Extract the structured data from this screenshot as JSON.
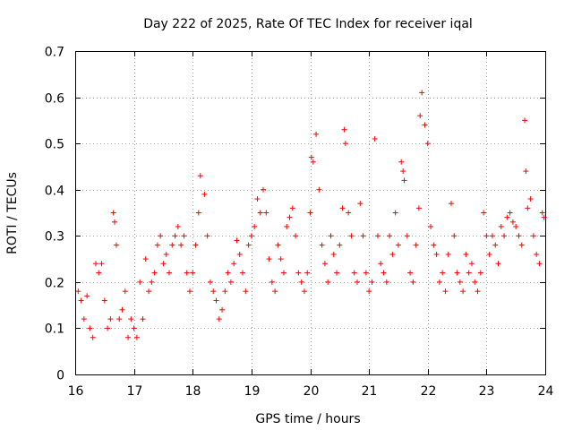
{
  "chart_data": {
    "type": "scatter",
    "title": "Day 222 of 2025, Rate Of TEC Index for receiver iqal",
    "xlabel": "GPS time / hours",
    "ylabel": "ROTI / TECUs",
    "xlim": [
      16,
      24
    ],
    "ylim": [
      0,
      0.7
    ],
    "xticks": [
      "16",
      "17",
      "18",
      "19",
      "20",
      "21",
      "22",
      "23",
      "24"
    ],
    "yticks": [
      "0",
      "0.1",
      "0.2",
      "0.3",
      "0.4",
      "0.5",
      "0.6",
      "0.7"
    ],
    "grid": true,
    "marker": "+",
    "color": "#ff0000",
    "series": [
      {
        "x": [
          16.05,
          16.1,
          16.15,
          16.2,
          16.25,
          16.3,
          16.35,
          16.4,
          16.45,
          16.5,
          16.55,
          16.6,
          16.65,
          16.67,
          16.7,
          16.75,
          16.8,
          16.85,
          16.9,
          16.95,
          17.0,
          17.05,
          17.1,
          17.15,
          17.2,
          17.25,
          17.3,
          17.35,
          17.4,
          17.45,
          17.5,
          17.55,
          17.6,
          17.65,
          17.7,
          17.75,
          17.8,
          17.85,
          17.9,
          17.95,
          18.0,
          18.05,
          18.1,
          18.13,
          18.2,
          18.25,
          18.3,
          18.35,
          18.4,
          18.45,
          18.5,
          18.55,
          18.6,
          18.65,
          18.7,
          18.75,
          18.8,
          18.85,
          18.9,
          18.95,
          19.0,
          19.05,
          19.1,
          19.15,
          19.2,
          19.25,
          19.3,
          19.35,
          19.4,
          19.45,
          19.5,
          19.55,
          19.6,
          19.65,
          19.7,
          19.75,
          19.8,
          19.85,
          19.9,
          19.95,
          20.0,
          20.02,
          20.05,
          20.1,
          20.15,
          20.2,
          20.25,
          20.3,
          20.35,
          20.4,
          20.45,
          20.5,
          20.55,
          20.58,
          20.6,
          20.65,
          20.7,
          20.75,
          20.8,
          20.85,
          20.9,
          20.95,
          21.0,
          21.05,
          21.1,
          21.15,
          21.2,
          21.25,
          21.3,
          21.35,
          21.4,
          21.45,
          21.5,
          21.55,
          21.58,
          21.6,
          21.65,
          21.7,
          21.75,
          21.8,
          21.85,
          21.87,
          21.9,
          21.95,
          22.0,
          22.05,
          22.1,
          22.15,
          22.2,
          22.25,
          22.3,
          22.35,
          22.4,
          22.45,
          22.5,
          22.55,
          22.6,
          22.65,
          22.7,
          22.75,
          22.8,
          22.85,
          22.9,
          22.95,
          23.0,
          23.05,
          23.1,
          23.15,
          23.2,
          23.25,
          23.3,
          23.35,
          23.4,
          23.45,
          23.5,
          23.55,
          23.6,
          23.65,
          23.67,
          23.7,
          23.75,
          23.8,
          23.85,
          23.9,
          23.95,
          23.98
        ],
        "y": [
          0.18,
          0.16,
          0.12,
          0.17,
          0.1,
          0.08,
          0.24,
          0.22,
          0.24,
          0.16,
          0.1,
          0.12,
          0.35,
          0.33,
          0.28,
          0.12,
          0.14,
          0.18,
          0.08,
          0.12,
          0.1,
          0.08,
          0.2,
          0.12,
          0.25,
          0.18,
          0.2,
          0.22,
          0.28,
          0.3,
          0.24,
          0.26,
          0.22,
          0.28,
          0.3,
          0.32,
          0.28,
          0.3,
          0.22,
          0.18,
          0.22,
          0.28,
          0.35,
          0.43,
          0.39,
          0.3,
          0.2,
          0.18,
          0.16,
          0.12,
          0.14,
          0.18,
          0.22,
          0.2,
          0.24,
          0.29,
          0.26,
          0.22,
          0.18,
          0.28,
          0.3,
          0.32,
          0.38,
          0.35,
          0.4,
          0.35,
          0.25,
          0.2,
          0.18,
          0.28,
          0.25,
          0.22,
          0.32,
          0.34,
          0.36,
          0.3,
          0.22,
          0.2,
          0.18,
          0.22,
          0.35,
          0.47,
          0.46,
          0.52,
          0.4,
          0.28,
          0.24,
          0.2,
          0.3,
          0.26,
          0.22,
          0.28,
          0.36,
          0.53,
          0.5,
          0.35,
          0.3,
          0.22,
          0.2,
          0.37,
          0.3,
          0.22,
          0.18,
          0.2,
          0.51,
          0.3,
          0.24,
          0.22,
          0.2,
          0.3,
          0.26,
          0.35,
          0.28,
          0.46,
          0.44,
          0.42,
          0.3,
          0.22,
          0.2,
          0.28,
          0.36,
          0.56,
          0.61,
          0.54,
          0.5,
          0.32,
          0.28,
          0.26,
          0.2,
          0.22,
          0.18,
          0.26,
          0.37,
          0.3,
          0.22,
          0.2,
          0.18,
          0.26,
          0.22,
          0.24,
          0.2,
          0.18,
          0.22,
          0.35,
          0.3,
          0.26,
          0.3,
          0.28,
          0.24,
          0.32,
          0.3,
          0.34,
          0.35,
          0.33,
          0.32,
          0.3,
          0.28,
          0.55,
          0.44,
          0.36,
          0.38,
          0.3,
          0.26,
          0.24,
          0.35,
          0.34
        ]
      }
    ]
  }
}
